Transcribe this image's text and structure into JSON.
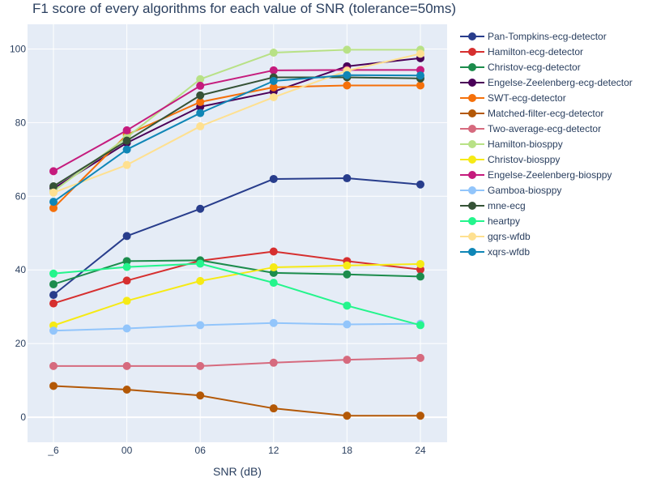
{
  "chart_data": {
    "type": "line",
    "title": "F1 score of every algorithms for each value of SNR (tolerance=50ms)",
    "xlabel": "SNR (dB)",
    "ylabel": "",
    "categories": [
      "_6",
      "00",
      "06",
      "12",
      "18",
      "24"
    ],
    "ylim": [
      -6.8,
      106.7
    ],
    "yticks": [
      0,
      20,
      40,
      60,
      80,
      100
    ],
    "grid": true,
    "legend_position": "right",
    "plot_bg": "#e5ecf6",
    "series": [
      {
        "name": "Pan-Tompkins-ecg-detector",
        "color": "#283d8c",
        "values": [
          33.2,
          49.2,
          56.6,
          64.7,
          64.9,
          63.2
        ]
      },
      {
        "name": "Hamilton-ecg-detector",
        "color": "#d62f2f",
        "values": [
          30.9,
          37.1,
          42.5,
          45.0,
          42.4,
          40.1
        ]
      },
      {
        "name": "Christov-ecg-detector",
        "color": "#1c8c4c",
        "values": [
          36.1,
          42.4,
          42.6,
          39.2,
          38.8,
          38.2
        ]
      },
      {
        "name": "Engelse-Zeelenberg-ecg-detector",
        "color": "#4a0058",
        "values": [
          62.1,
          74.5,
          84.3,
          88.4,
          95.3,
          97.5
        ]
      },
      {
        "name": "SWT-ecg-detector",
        "color": "#f5700a",
        "values": [
          56.8,
          76.7,
          85.6,
          89.6,
          90.1,
          90.1
        ]
      },
      {
        "name": "Matched-filter-ecg-detector",
        "color": "#b35806",
        "values": [
          8.5,
          7.5,
          5.9,
          2.4,
          0.4,
          0.4
        ]
      },
      {
        "name": "Two-average-ecg-detector",
        "color": "#d66a7e",
        "values": [
          13.9,
          13.9,
          13.9,
          14.8,
          15.6,
          16.1
        ]
      },
      {
        "name": "Hamilton-biosppy",
        "color": "#b8e186",
        "values": [
          61.4,
          76.0,
          91.8,
          99.0,
          99.8,
          99.8
        ]
      },
      {
        "name": "Christov-biosppy",
        "color": "#f6ea15",
        "values": [
          24.9,
          31.6,
          37.0,
          40.7,
          41.2,
          41.6
        ]
      },
      {
        "name": "Engelse-Zeelenberg-biosppy",
        "color": "#c51b7d",
        "values": [
          66.8,
          77.9,
          90.0,
          94.2,
          94.3,
          94.3
        ]
      },
      {
        "name": "Gamboa-biosppy",
        "color": "#92c5fb",
        "values": [
          23.5,
          24.1,
          25.0,
          25.6,
          25.2,
          25.4
        ]
      },
      {
        "name": "mne-ecg",
        "color": "#355236",
        "values": [
          62.7,
          75.1,
          87.4,
          92.3,
          92.3,
          92.0
        ]
      },
      {
        "name": "heartpy",
        "color": "#24f58c",
        "values": [
          39.0,
          40.8,
          41.7,
          36.5,
          30.3,
          25.0
        ]
      },
      {
        "name": "gqrs-wfdb",
        "color": "#fee090",
        "values": [
          61.0,
          68.5,
          79.0,
          86.9,
          94.1,
          98.7
        ]
      },
      {
        "name": "xqrs-wfdb",
        "color": "#0f86b6",
        "values": [
          58.5,
          72.7,
          82.6,
          91.3,
          92.9,
          92.8
        ]
      }
    ]
  }
}
